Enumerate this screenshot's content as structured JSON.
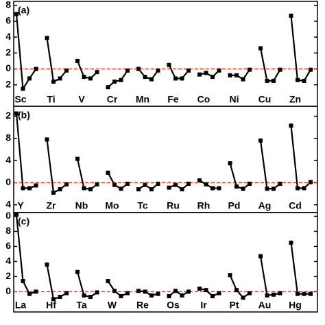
{
  "chart_data": [
    {
      "type": "line",
      "panel_label": "(a)",
      "color": "#000000",
      "hline": 0,
      "hline_color": "#e8401c",
      "ylim": [
        -4.7,
        8.5
      ],
      "yticks": [
        {
          "value": -2,
          "label": "2"
        },
        0,
        2,
        4,
        6,
        8
      ],
      "groups": [
        {
          "name": "Sc",
          "values": [
            6.9,
            -2.5,
            -1.2,
            0
          ]
        },
        {
          "name": "Ti",
          "values": [
            3.9,
            -1.6,
            -1.2,
            -0.2
          ]
        },
        {
          "name": "V",
          "values": [
            1.0,
            -1.0,
            -1.2,
            -0.4
          ]
        },
        {
          "name": "Cr",
          "values": [
            -2.3,
            -1.6,
            -1.4,
            -0.2
          ]
        },
        {
          "name": "Mn",
          "values": [
            0.0,
            -1.0,
            -1.3,
            -0.2
          ]
        },
        {
          "name": "Fe",
          "values": [
            0.5,
            -1.2,
            -1.2,
            -0.2
          ]
        },
        {
          "name": "Co",
          "values": [
            -0.7,
            -0.5,
            -1.0,
            -0.2
          ]
        },
        {
          "name": "Ni",
          "values": [
            -0.8,
            -0.8,
            -1.3,
            -0.1
          ]
        },
        {
          "name": "Cu",
          "values": [
            2.6,
            -1.5,
            -1.5,
            -0.1
          ]
        },
        {
          "name": "Zn",
          "values": [
            6.7,
            -1.4,
            -1.5,
            -0.1
          ]
        }
      ]
    },
    {
      "type": "line",
      "panel_label": "(b)",
      "color": "#000000",
      "hline": 0,
      "hline_color": "#e8401c",
      "ylim": [
        -5.4,
        13.8
      ],
      "yticks": [
        {
          "value": -4,
          "label": "4"
        },
        0,
        4,
        8,
        {
          "value": 12,
          "label": "2"
        }
      ],
      "groups": [
        {
          "name": "Y",
          "values": [
            12.5,
            -1.0,
            -1.0,
            -0.5
          ]
        },
        {
          "name": "Zr",
          "values": [
            7.8,
            -1.8,
            -1.2,
            -0.3
          ]
        },
        {
          "name": "Nb",
          "values": [
            4.3,
            -1.0,
            -1.2,
            -0.3
          ]
        },
        {
          "name": "Mo",
          "values": [
            1.8,
            -0.4,
            -1.1,
            -0.2
          ]
        },
        {
          "name": "Tc",
          "values": [
            -1.2,
            -0.4,
            -1.2,
            -0.2
          ]
        },
        {
          "name": "Ru",
          "values": [
            -0.9,
            -0.4,
            -1.2,
            -0.2
          ]
        },
        {
          "name": "Rh",
          "values": [
            0.4,
            -0.3,
            -1.0,
            -1.0
          ]
        },
        {
          "name": "Pd",
          "values": [
            3.5,
            -0.7,
            -1.1,
            -0.2
          ]
        },
        {
          "name": "Ag",
          "values": [
            7.6,
            -1.1,
            -1.1,
            -0.2
          ]
        },
        {
          "name": "Cd",
          "values": [
            10.3,
            -1.0,
            -1.0,
            0.1
          ]
        }
      ]
    },
    {
      "type": "line",
      "panel_label": "(c)",
      "color": "#000000",
      "hline": 0,
      "hline_color": "#e8401c",
      "ylim": [
        -2.7,
        10.5
      ],
      "yticks": [
        0,
        2,
        4,
        6,
        8,
        {
          "value": 10,
          "label": "0"
        }
      ],
      "groups": [
        {
          "name": "La",
          "values": [
            10.2,
            1.4,
            -0.3,
            0.0
          ]
        },
        {
          "name": "Hf",
          "values": [
            3.6,
            -1.0,
            -0.7,
            -0.2
          ]
        },
        {
          "name": "Ta",
          "values": [
            2.6,
            -0.5,
            -0.7,
            -0.1
          ]
        },
        {
          "name": "W",
          "values": [
            1.4,
            0.1,
            -0.6,
            -0.2
          ]
        },
        {
          "name": "Re",
          "values": [
            0.1,
            0.0,
            -0.5,
            -0.3
          ]
        },
        {
          "name": "Os",
          "values": [
            -0.6,
            0.1,
            -0.5,
            0.0
          ]
        },
        {
          "name": "Ir",
          "values": [
            0.4,
            0.2,
            -0.6,
            -0.2
          ]
        },
        {
          "name": "Pt",
          "values": [
            2.2,
            0.2,
            -0.8,
            -0.2
          ]
        },
        {
          "name": "Au",
          "values": [
            4.7,
            -0.5,
            -0.4,
            -0.2
          ]
        },
        {
          "name": "Hg",
          "values": [
            6.5,
            -0.3,
            -0.3,
            -0.3
          ]
        }
      ]
    }
  ]
}
